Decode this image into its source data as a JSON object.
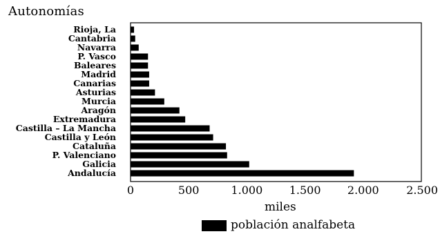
{
  "chart_data": {
    "type": "bar",
    "orientation": "horizontal",
    "title": "Autonomías",
    "xlabel": "miles",
    "ylabel": "",
    "xlim": [
      0,
      2500
    ],
    "x_ticks": [
      0,
      500,
      1000,
      1500,
      2000,
      2500
    ],
    "x_tick_labels": [
      "0",
      "500",
      "1.000",
      "1.500",
      "2.000",
      "2.500"
    ],
    "grid": false,
    "legend": "bottom",
    "categories": [
      "Rioja, La",
      "Cantabria",
      "Navarra",
      "P. Vasco",
      "Baleares",
      "Madrid",
      "Canarias",
      "Asturias",
      "Murcia",
      "Aragón",
      "Extremadura",
      "Castilla – La Mancha",
      "Castilla y León",
      "Cataluña",
      "P. Valenciano",
      "Galicia",
      "Andalucía"
    ],
    "series": [
      {
        "name": "población analfabeta",
        "values": [
          30,
          40,
          70,
          150,
          150,
          160,
          160,
          210,
          290,
          420,
          470,
          680,
          710,
          820,
          830,
          1020,
          1920
        ],
        "color": "#000000"
      }
    ]
  }
}
